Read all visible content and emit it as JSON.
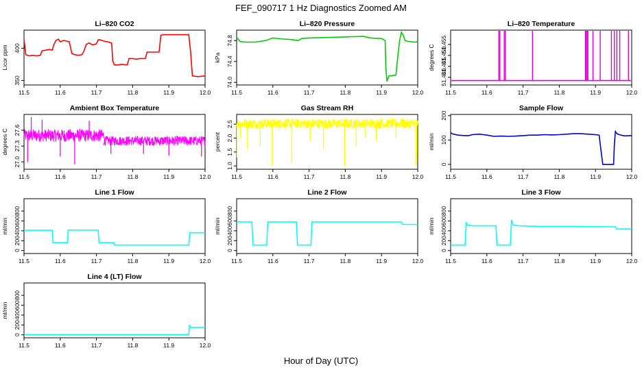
{
  "figure": {
    "title": "FEF_090717  1 Hz Diagnostics Zoomed AM",
    "xlabel": "Hour of Day (UTC)"
  },
  "chart_data": [
    {
      "type": "line",
      "title": "Li–820 CO2",
      "ylabel": "Licor ppm",
      "color": "#ff0000",
      "xlim": [
        11.5,
        12.0
      ],
      "ylim": [
        343,
        428
      ],
      "xticks": [
        11.5,
        11.6,
        11.7,
        11.8,
        11.9,
        12.0
      ],
      "xtick_labels": [
        "11.5",
        "11.6",
        "11.7",
        "11.8",
        "11.9",
        "12.0"
      ],
      "yticks": [
        350,
        400
      ],
      "ytick_labels": [
        "350",
        "400"
      ],
      "x": [
        11.5,
        11.502,
        11.505,
        11.515,
        11.525,
        11.535,
        11.545,
        11.55,
        11.56,
        11.57,
        11.578,
        11.582,
        11.588,
        11.595,
        11.6,
        11.61,
        11.618,
        11.625,
        11.632,
        11.64,
        11.65,
        11.66,
        11.665,
        11.672,
        11.68,
        11.69,
        11.7,
        11.705,
        11.71,
        11.72,
        11.73,
        11.742,
        11.745,
        11.75,
        11.76,
        11.77,
        11.785,
        11.79,
        11.8,
        11.81,
        11.82,
        11.835,
        11.84,
        11.85,
        11.86,
        11.873,
        11.878,
        11.885,
        11.9,
        11.92,
        11.94,
        11.955,
        11.96,
        11.965,
        11.98,
        12.0
      ],
      "y": [
        414,
        404,
        390,
        388,
        389,
        388,
        389,
        396,
        397,
        398,
        397,
        405,
        412,
        414,
        410,
        412,
        411,
        410,
        392,
        390,
        389,
        390,
        395,
        406,
        408,
        405,
        407,
        413,
        413,
        411,
        410,
        408,
        380,
        374,
        374,
        375,
        374,
        384,
        384,
        383,
        384,
        384,
        394,
        394,
        394,
        394,
        420,
        421,
        421,
        421,
        421,
        421,
        394,
        357,
        356,
        357
      ]
    },
    {
      "type": "line",
      "title": "Li–820 Pressure",
      "ylabel": "kPa",
      "color": "#00cc00",
      "xlim": [
        11.5,
        12.0
      ],
      "ylim": [
        73.95,
        75.0
      ],
      "xticks": [
        11.5,
        11.6,
        11.7,
        11.8,
        11.9,
        12.0
      ],
      "xtick_labels": [
        "11.5",
        "11.6",
        "11.7",
        "11.8",
        "11.9",
        "12.0"
      ],
      "yticks": [
        74.0,
        74.4,
        74.8
      ],
      "ytick_labels": [
        "74.0",
        "74.4",
        "74.8"
      ],
      "x": [
        11.5,
        11.51,
        11.53,
        11.55,
        11.58,
        11.6,
        11.63,
        11.65,
        11.67,
        11.68,
        11.7,
        11.75,
        11.8,
        11.85,
        11.87,
        11.9,
        11.91,
        11.912,
        11.915,
        11.92,
        11.93,
        11.94,
        11.945,
        11.95,
        11.955,
        11.96,
        11.965,
        11.97,
        11.98,
        11.99,
        12.0
      ],
      "y": [
        74.86,
        74.78,
        74.77,
        74.77,
        74.8,
        74.85,
        74.83,
        74.82,
        74.8,
        74.84,
        74.85,
        74.86,
        74.87,
        74.88,
        74.85,
        74.84,
        74.8,
        74.3,
        74.02,
        74.12,
        74.13,
        74.14,
        74.5,
        74.8,
        74.96,
        74.9,
        74.8,
        74.79,
        74.78,
        74.77,
        74.78
      ]
    },
    {
      "type": "line",
      "title": "Li–820 Temperature",
      "ylabel": "degrees C",
      "color": "#dd00dd",
      "xlim": [
        11.5,
        12.0
      ],
      "ylim": [
        51.4365,
        51.4615
      ],
      "xticks": [
        11.5,
        11.6,
        11.7,
        11.8,
        11.9,
        12.0
      ],
      "xtick_labels": [
        "11.5",
        "11.6",
        "11.7",
        "11.8",
        "11.9",
        "12.0"
      ],
      "yticks": [
        51.44,
        51.445,
        51.45,
        51.455
      ],
      "ytick_labels": [
        "51.440",
        "51.445",
        "51.450",
        "51.455"
      ],
      "baseline": 51.4385,
      "spike_top": 51.4625,
      "spikes_x": [
        11.633,
        11.636,
        11.648,
        11.651,
        11.726,
        11.872,
        11.874,
        11.877,
        11.879,
        11.893,
        11.913,
        11.944,
        11.952,
        11.959,
        11.967,
        11.991
      ]
    },
    {
      "type": "line",
      "title": "Ambient Box Temperature",
      "ylabel": "degrees C",
      "color": "#ff00ff",
      "xlim": [
        11.5,
        12.0
      ],
      "ylim": [
        26.86,
        27.9
      ],
      "xticks": [
        11.5,
        11.6,
        11.7,
        11.8,
        11.9,
        12.0
      ],
      "xtick_labels": [
        "11.5",
        "11.6",
        "11.7",
        "11.8",
        "11.9",
        "12.0"
      ],
      "yticks": [
        27.0,
        27.3,
        27.6
      ],
      "ytick_labels": [
        "27.0",
        "27.3",
        "27.6"
      ],
      "noise_segments": [
        {
          "x0": 11.5,
          "x1": 11.72,
          "center": 27.5,
          "halfwidth": 0.12
        },
        {
          "x0": 11.72,
          "x1": 12.0,
          "center": 27.4,
          "halfwidth": 0.09
        }
      ],
      "spikes": [
        {
          "x": 11.51,
          "y": 27.0
        },
        {
          "x": 11.52,
          "y": 27.85
        },
        {
          "x": 11.55,
          "y": 27.8
        },
        {
          "x": 11.6,
          "y": 27.1
        },
        {
          "x": 11.64,
          "y": 26.95
        },
        {
          "x": 11.68,
          "y": 27.78
        },
        {
          "x": 11.74,
          "y": 27.15
        },
        {
          "x": 11.83,
          "y": 27.15
        },
        {
          "x": 11.9,
          "y": 27.12
        },
        {
          "x": 11.99,
          "y": 27.1
        }
      ]
    },
    {
      "type": "line",
      "title": "Gas Stream RH",
      "ylabel": "percent",
      "color": "#ffff00",
      "xlim": [
        11.5,
        12.0
      ],
      "ylim": [
        0.88,
        2.85
      ],
      "xticks": [
        11.5,
        11.6,
        11.7,
        11.8,
        11.9,
        12.0
      ],
      "xtick_labels": [
        "11.5",
        "11.6",
        "11.7",
        "11.8",
        "11.9",
        "12.0"
      ],
      "yticks": [
        1.0,
        1.5,
        2.0,
        2.5
      ],
      "ytick_labels": [
        "1.0",
        "1.5",
        "2.0",
        "2.5"
      ],
      "noise_segments": [
        {
          "x0": 11.5,
          "x1": 12.0,
          "center": 2.52,
          "halfwidth": 0.18
        }
      ],
      "spikes": [
        {
          "x": 11.501,
          "y": 1.3
        },
        {
          "x": 11.51,
          "y": 2.0
        },
        {
          "x": 11.53,
          "y": 1.6
        },
        {
          "x": 11.565,
          "y": 1.7
        },
        {
          "x": 11.598,
          "y": 1.0
        },
        {
          "x": 11.652,
          "y": 1.1
        },
        {
          "x": 11.703,
          "y": 1.9
        },
        {
          "x": 11.74,
          "y": 1.6
        },
        {
          "x": 11.798,
          "y": 1.0
        },
        {
          "x": 11.83,
          "y": 1.7
        },
        {
          "x": 11.856,
          "y": 2.0
        },
        {
          "x": 11.885,
          "y": 1.9
        },
        {
          "x": 11.94,
          "y": 2.0
        },
        {
          "x": 11.995,
          "y": 1.0
        },
        {
          "x": 11.998,
          "y": 1.3
        }
      ]
    },
    {
      "type": "line",
      "title": "Sample Flow",
      "ylabel": "ml/min",
      "color": "#0000cc",
      "xlim": [
        11.5,
        12.0
      ],
      "ylim": [
        -20,
        205
      ],
      "xticks": [
        11.5,
        11.6,
        11.7,
        11.8,
        11.9,
        12.0
      ],
      "xtick_labels": [
        "11.5",
        "11.6",
        "11.7",
        "11.8",
        "11.9",
        "12.0"
      ],
      "yticks": [
        0,
        100,
        200
      ],
      "ytick_labels": [
        "0",
        "100",
        "200"
      ],
      "x": [
        11.5,
        11.505,
        11.52,
        11.54,
        11.55,
        11.56,
        11.58,
        11.59,
        11.6,
        11.62,
        11.64,
        11.66,
        11.68,
        11.7,
        11.72,
        11.74,
        11.76,
        11.78,
        11.8,
        11.82,
        11.84,
        11.86,
        11.88,
        11.9,
        11.91,
        11.915,
        11.92,
        11.95,
        11.952,
        11.955,
        11.96,
        11.97,
        11.98,
        12.0
      ],
      "y": [
        130,
        125,
        120,
        118,
        118,
        122,
        124,
        122,
        120,
        115,
        116,
        115,
        116,
        118,
        120,
        120,
        122,
        121,
        122,
        124,
        126,
        126,
        124,
        122,
        120,
        60,
        0,
        0,
        80,
        135,
        125,
        120,
        117,
        118
      ]
    },
    {
      "type": "line",
      "title": "Line 1 Flow",
      "ylabel": "ml/min",
      "color": "#00ffff",
      "xlim": [
        11.5,
        12.0
      ],
      "ylim": [
        -60,
        1050
      ],
      "xticks": [
        11.5,
        11.6,
        11.7,
        11.8,
        11.9,
        12.0
      ],
      "xtick_labels": [
        "11.5",
        "11.6",
        "11.7",
        "11.8",
        "11.9",
        "12.0"
      ],
      "yticks": [
        0,
        200,
        400,
        600,
        800
      ],
      "ytick_labels": [
        "0",
        "200",
        "400",
        "600",
        "800"
      ],
      "x": [
        11.5,
        11.578,
        11.58,
        11.62,
        11.622,
        11.705,
        11.707,
        11.748,
        11.75,
        11.955,
        11.958,
        12.0
      ],
      "y": [
        410,
        410,
        160,
        160,
        415,
        415,
        160,
        160,
        110,
        110,
        360,
        360
      ]
    },
    {
      "type": "line",
      "title": "Line 2 Flow",
      "ylabel": "ml/min",
      "color": "#00ffff",
      "xlim": [
        11.5,
        12.0
      ],
      "ylim": [
        -60,
        1050
      ],
      "xticks": [
        11.5,
        11.6,
        11.7,
        11.8,
        11.9,
        12.0
      ],
      "xtick_labels": [
        "11.5",
        "11.6",
        "11.7",
        "11.8",
        "11.9",
        "12.0"
      ],
      "yticks": [
        0,
        200,
        400,
        600,
        800
      ],
      "ytick_labels": [
        "0",
        "200",
        "400",
        "600",
        "800"
      ],
      "x": [
        11.5,
        11.542,
        11.545,
        11.583,
        11.586,
        11.665,
        11.668,
        11.705,
        11.708,
        11.955,
        11.958,
        12.0
      ],
      "y": [
        580,
        580,
        110,
        110,
        580,
        580,
        110,
        110,
        580,
        580,
        530,
        530
      ]
    },
    {
      "type": "line",
      "title": "Line 3 Flow",
      "ylabel": "ml/min",
      "color": "#00ffff",
      "xlim": [
        11.5,
        12.0
      ],
      "ylim": [
        -60,
        1050
      ],
      "xticks": [
        11.5,
        11.6,
        11.7,
        11.8,
        11.9,
        12.0
      ],
      "xtick_labels": [
        "11.5",
        "11.6",
        "11.7",
        "11.8",
        "11.9",
        "12.0"
      ],
      "yticks": [
        0,
        200,
        400,
        600,
        800
      ],
      "ytick_labels": [
        "0",
        "200",
        "400",
        "600",
        "800"
      ],
      "x": [
        11.5,
        11.54,
        11.543,
        11.545,
        11.56,
        11.625,
        11.628,
        11.665,
        11.668,
        11.672,
        11.69,
        11.75,
        11.85,
        11.955,
        11.958,
        12.0
      ],
      "y": [
        110,
        110,
        580,
        520,
        500,
        500,
        110,
        110,
        620,
        520,
        500,
        490,
        490,
        480,
        440,
        440
      ]
    },
    {
      "type": "line",
      "title": "Line 4 (LT) Flow",
      "ylabel": "ml/min",
      "color": "#00ffff",
      "xlim": [
        11.5,
        12.0
      ],
      "ylim": [
        -60,
        1050
      ],
      "xticks": [
        11.5,
        11.6,
        11.7,
        11.8,
        11.9,
        12.0
      ],
      "xtick_labels": [
        "11.5",
        "11.6",
        "11.7",
        "11.8",
        "11.9",
        "12.0"
      ],
      "yticks": [
        0,
        200,
        400,
        600,
        800
      ],
      "ytick_labels": [
        "0",
        "200",
        "400",
        "600",
        "800"
      ],
      "x": [
        11.5,
        11.955,
        11.957,
        11.96,
        12.0
      ],
      "y": [
        5,
        5,
        200,
        150,
        150
      ]
    }
  ]
}
